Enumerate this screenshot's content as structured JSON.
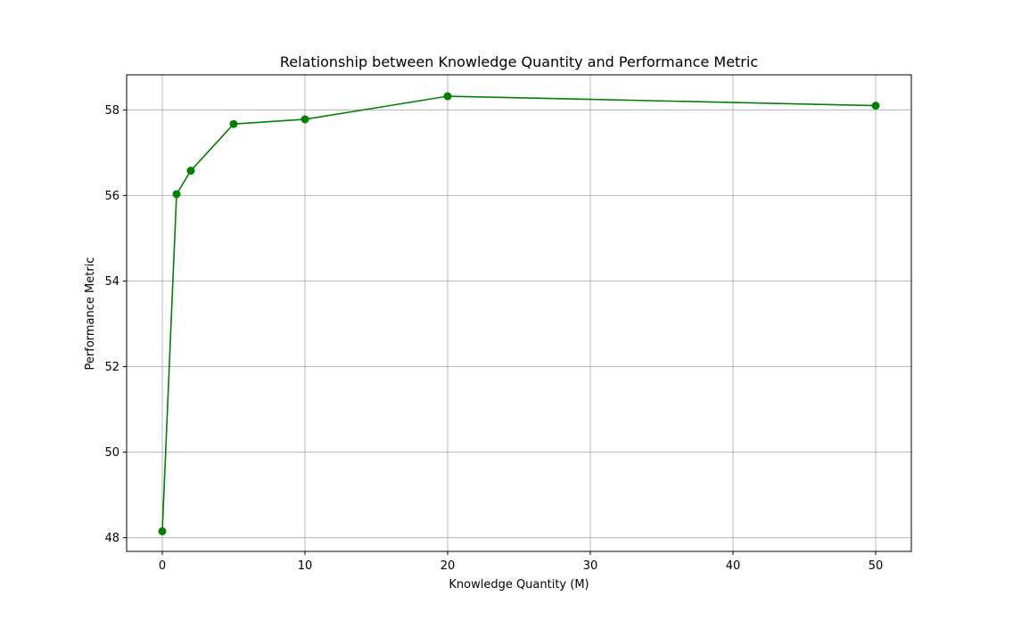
{
  "chart_data": {
    "type": "line",
    "title": "Relationship between Knowledge Quantity and Performance Metric",
    "xlabel": "Knowledge Quantity (M)",
    "ylabel": "Performance Metric",
    "x": [
      0,
      1,
      2,
      5,
      10,
      20,
      50
    ],
    "series": [
      {
        "values": [
          48.15,
          56.03,
          56.58,
          57.67,
          57.78,
          58.32,
          58.1
        ],
        "color": "#008000",
        "marker": "circle"
      }
    ],
    "xlim": [
      -2.5,
      52.5
    ],
    "ylim": [
      47.68,
      58.82
    ],
    "xticks": [
      0,
      10,
      20,
      30,
      40,
      50
    ],
    "yticks": [
      48,
      50,
      52,
      54,
      56,
      58
    ],
    "grid": true,
    "grid_color": "#b0b0b0"
  }
}
